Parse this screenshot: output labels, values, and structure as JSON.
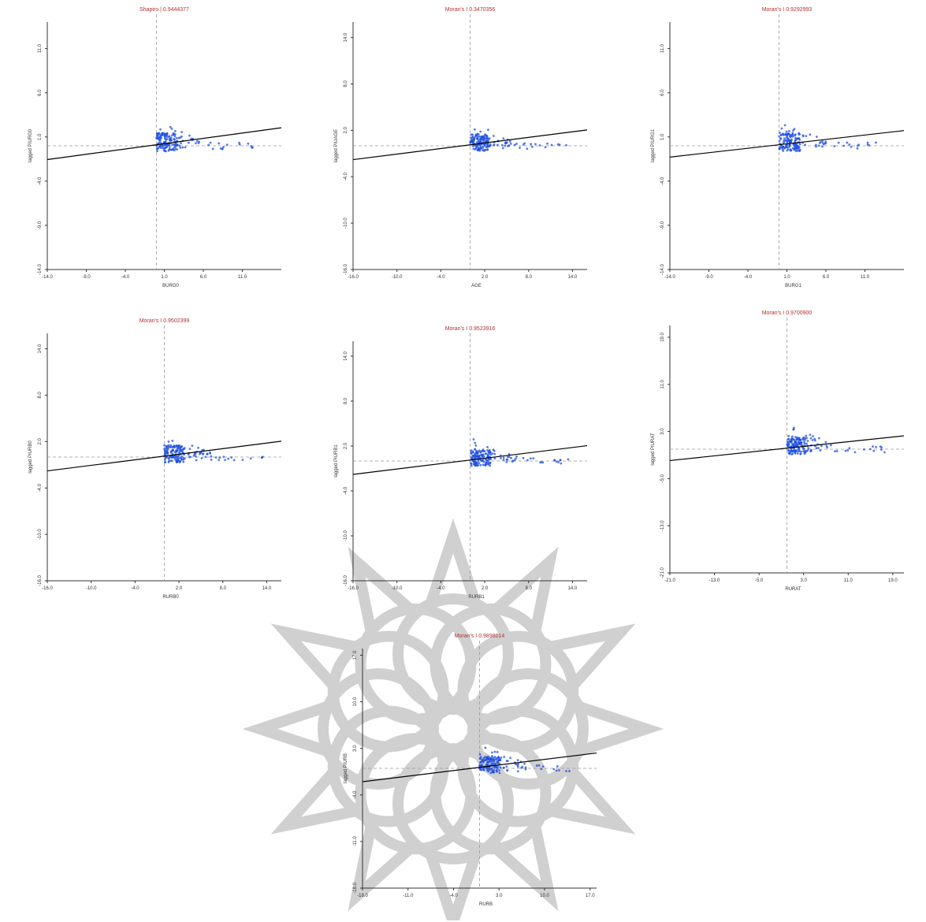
{
  "colors": {
    "points": "#1f4fe0",
    "regression": "#000000",
    "reference": "#999999",
    "frame": "#333333",
    "title": "#b03030",
    "watermark": "#c8c8c8"
  },
  "chart_data": [
    {
      "type": "scatter",
      "title": "Shapiro | 0.9444377",
      "xlabel": "BURG0",
      "ylabel": "lagged PIURG0",
      "xlim": [
        -14,
        16
      ],
      "ylim": [
        -14,
        14
      ],
      "xticks": [
        "-14.0",
        "-9.0",
        "-4.0",
        "1.0",
        "6.0",
        "11.0"
      ],
      "xtick_values": [
        -14,
        -9,
        -4,
        1,
        6,
        11
      ],
      "yticks": [
        "-14.0",
        "-9.0",
        "-4.0",
        "1.0",
        "6.0",
        "11.0"
      ],
      "ytick_values": [
        -14,
        -9,
        -4,
        1,
        6,
        11
      ],
      "slope": 0.12,
      "intercept": 0.2
    },
    {
      "type": "scatter",
      "title": "Moran's I 0.3470356",
      "xlabel": "AGE",
      "ylabel": "lagged PIUAGE",
      "xlim": [
        -16,
        16
      ],
      "ylim": [
        -16,
        16
      ],
      "xticks": [
        "-16.0",
        "-10.0",
        "-4.0",
        "2.0",
        "8.0",
        "14.0"
      ],
      "xtick_values": [
        -16,
        -10,
        -4,
        2,
        8,
        14
      ],
      "yticks": [
        "-16.0",
        "-10.0",
        "-4.0",
        "2.0",
        "8.0",
        "14.0"
      ],
      "ytick_values": [
        -16,
        -10,
        -4,
        2,
        8,
        14
      ],
      "slope": 0.12,
      "intercept": 0.2
    },
    {
      "type": "scatter",
      "title": "Moran's I 0.9292993",
      "xlabel": "BURG1",
      "ylabel": "lagged PIURG1",
      "xlim": [
        -14,
        16
      ],
      "ylim": [
        -14,
        14
      ],
      "xticks": [
        "-14.0",
        "-9.0",
        "-4.0",
        "1.0",
        "6.0",
        "11.0"
      ],
      "xtick_values": [
        -14,
        -9,
        -4,
        1,
        6,
        11
      ],
      "yticks": [
        "-14.0",
        "-9.0",
        "-4.0",
        "1.0",
        "6.0",
        "11.0"
      ],
      "ytick_values": [
        -14,
        -9,
        -4,
        1,
        6,
        11
      ],
      "slope": 0.1,
      "intercept": 0.2
    },
    {
      "type": "scatter",
      "title": "Moran's I 0.9502399",
      "xlabel": "RURB0",
      "ylabel": "lagged PIURB0",
      "xlim": [
        -16,
        16
      ],
      "ylim": [
        -16,
        16
      ],
      "xticks": [
        "-16.0",
        "-10.0",
        "-4.0",
        "2.0",
        "8.0",
        "14.0"
      ],
      "xtick_values": [
        -16,
        -10,
        -4,
        2,
        8,
        14
      ],
      "yticks": [
        "-16.0",
        "-10.0",
        "-4.0",
        "2.0",
        "8.0",
        "14.0"
      ],
      "ytick_values": [
        -16,
        -10,
        -4,
        2,
        8,
        14
      ],
      "slope": 0.12,
      "intercept": 0.2
    },
    {
      "type": "scatter",
      "title": "Moran's I 0.9523916",
      "xlabel": "RURB1",
      "ylabel": "lagged PIURB1",
      "xlim": [
        -16,
        16
      ],
      "ylim": [
        -16,
        16
      ],
      "xticks": [
        "-16.0",
        "-10.0",
        "-4.0",
        "2.0",
        "8.0",
        "14.0"
      ],
      "xtick_values": [
        -16,
        -10,
        -4,
        2,
        8,
        14
      ],
      "yticks": [
        "-16.0",
        "-10.0",
        "-4.0",
        "2.0",
        "8.0",
        "14.0"
      ],
      "ytick_values": [
        -16,
        -10,
        -4,
        2,
        8,
        14
      ],
      "slope": 0.12,
      "intercept": 0.2
    },
    {
      "type": "scatter",
      "title": "Moran's I 0.9700900",
      "xlabel": "RURAT",
      "ylabel": "lagged PIURAT",
      "xlim": [
        -21,
        21
      ],
      "ylim": [
        -21,
        21
      ],
      "xticks": [
        "-21.0",
        "-13.0",
        "-5.0",
        "3.0",
        "11.0",
        "19.0"
      ],
      "xtick_values": [
        -21,
        -13,
        -5,
        3,
        11,
        19
      ],
      "yticks": [
        "-21.0",
        "-13.0",
        "-5.0",
        "3.0",
        "11.0",
        "19.0"
      ],
      "ytick_values": [
        -21,
        -13,
        -5,
        3,
        11,
        19
      ],
      "slope": 0.1,
      "intercept": 0.2
    },
    {
      "type": "scatter",
      "title": "Moran's I 0.9898014",
      "xlabel": "RURB",
      "ylabel": "lagged PIURB",
      "xlim": [
        -18,
        18
      ],
      "ylim": [
        -18,
        18
      ],
      "xticks": [
        "-18.0",
        "-11.0",
        "-4.0",
        "3.0",
        "10.0",
        "17.0"
      ],
      "xtick_values": [
        -18,
        -11,
        -4,
        3,
        10,
        17
      ],
      "yticks": [
        "-18.0",
        "-11.0",
        "-4.0",
        "3.0",
        "10.0",
        "17.0"
      ],
      "ytick_values": [
        -18,
        -11,
        -4,
        3,
        10,
        17
      ],
      "slope": 0.12,
      "intercept": 0.2
    }
  ]
}
